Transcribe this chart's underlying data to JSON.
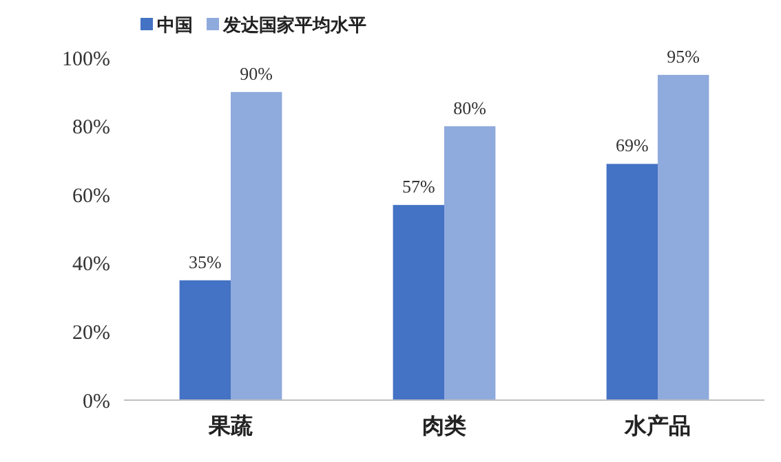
{
  "chart_data": {
    "type": "bar",
    "categories": [
      "果蔬",
      "肉类",
      "水产品"
    ],
    "series": [
      {
        "name": "中国",
        "color": "#4472c4",
        "values": [
          35,
          57,
          69
        ],
        "value_labels": [
          "35%",
          "57%",
          "69%"
        ]
      },
      {
        "name": "发达国家平均水平",
        "color": "#8faadc",
        "values": [
          90,
          80,
          95
        ],
        "value_labels": [
          "90%",
          "80%",
          "95%"
        ]
      }
    ],
    "ylim": [
      0,
      100
    ],
    "yticks": [
      {
        "value": 0,
        "label": "0%"
      },
      {
        "value": 20,
        "label": "20%"
      },
      {
        "value": 40,
        "label": "40%"
      },
      {
        "value": 60,
        "label": "60%"
      },
      {
        "value": 80,
        "label": "80%"
      },
      {
        "value": 100,
        "label": "100%"
      }
    ],
    "grid": false,
    "legend": "top left"
  }
}
